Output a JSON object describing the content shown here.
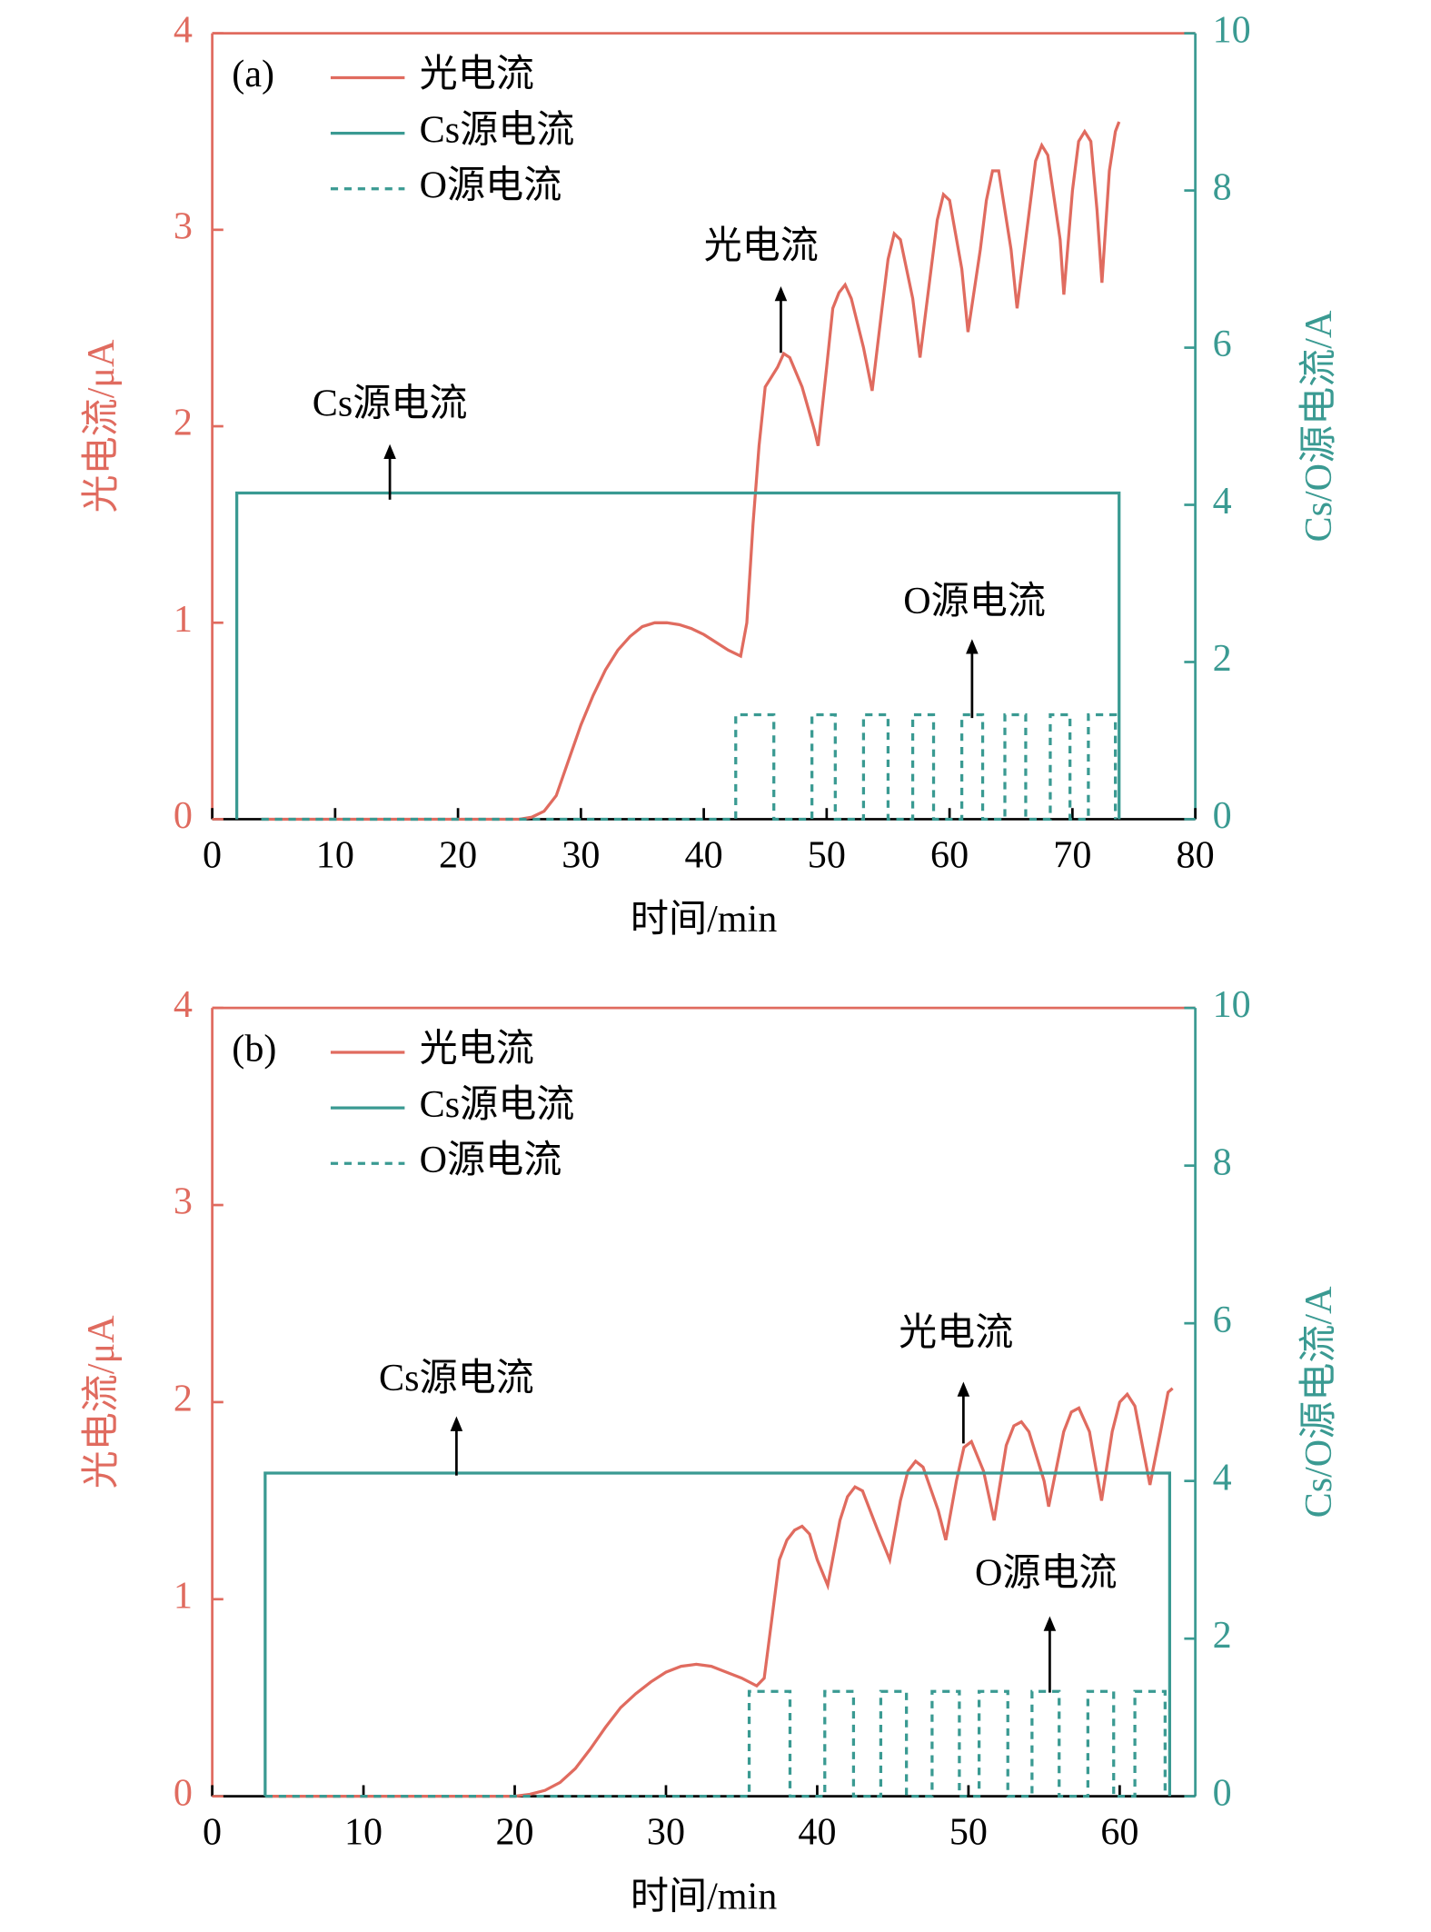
{
  "chart_data": [
    {
      "type": "line",
      "panel_label": "(a)",
      "xlabel": "时间/min",
      "ylabel": "光电流/μA",
      "y2label": "Cs/O源电流/A",
      "xlim": [
        0,
        80
      ],
      "xticks": [
        0,
        10,
        20,
        30,
        40,
        50,
        60,
        70,
        80
      ],
      "ylim": [
        0,
        4
      ],
      "yticks": [
        0,
        1,
        2,
        3,
        4
      ],
      "y2lim": [
        0,
        10
      ],
      "y2ticks": [
        0,
        2,
        4,
        6,
        8,
        10
      ],
      "annotations": [
        "光电流",
        "Cs源电流",
        "O源电流"
      ],
      "series": [
        {
          "name": "光电流",
          "color": "#e06b5f",
          "axis": "y",
          "style": "solid",
          "x": [
            4,
            25,
            26,
            27,
            28,
            29,
            30,
            31,
            32,
            33,
            34,
            35,
            36,
            37,
            38,
            39,
            40,
            41,
            42,
            43,
            43.5,
            44,
            44.5,
            45,
            45.5,
            46,
            46.5,
            47,
            48,
            49,
            49.3,
            50,
            50.5,
            51,
            51.5,
            52,
            53,
            53.7,
            54.5,
            55,
            55.5,
            56,
            57,
            57.6,
            58.5,
            59,
            59.5,
            60,
            61,
            61.5,
            62.5,
            63,
            63.5,
            64,
            65,
            65.5,
            66.5,
            67,
            67.5,
            68,
            69,
            69.3,
            70,
            70.5,
            71,
            71.5,
            72,
            72.4,
            73,
            73.5,
            73.8
          ],
          "values": [
            0,
            0,
            0.01,
            0.04,
            0.12,
            0.3,
            0.48,
            0.63,
            0.76,
            0.86,
            0.93,
            0.98,
            1.0,
            1.0,
            0.99,
            0.97,
            0.94,
            0.9,
            0.86,
            0.83,
            1.0,
            1.5,
            1.9,
            2.2,
            2.25,
            2.3,
            2.37,
            2.35,
            2.2,
            1.98,
            1.9,
            2.3,
            2.6,
            2.68,
            2.72,
            2.65,
            2.4,
            2.18,
            2.6,
            2.85,
            2.98,
            2.95,
            2.65,
            2.35,
            2.8,
            3.05,
            3.18,
            3.15,
            2.8,
            2.48,
            2.9,
            3.15,
            3.3,
            3.3,
            2.9,
            2.6,
            3.1,
            3.35,
            3.43,
            3.38,
            2.95,
            2.67,
            3.2,
            3.45,
            3.5,
            3.45,
            3.1,
            2.73,
            3.3,
            3.5,
            3.55
          ]
        },
        {
          "name": "Cs源电流",
          "color": "#3a9a92",
          "axis": "y2",
          "style": "solid",
          "x": [
            2,
            2,
            73.8,
            73.8
          ],
          "values": [
            0,
            4.15,
            4.15,
            0
          ]
        },
        {
          "name": "O源电流",
          "color": "#3a9a92",
          "axis": "y2",
          "style": "dashed",
          "x": [
            4,
            42.6,
            42.6,
            45.7,
            45.7,
            48.8,
            48.8,
            50.7,
            50.7,
            53,
            53,
            55,
            55,
            57,
            57,
            58.7,
            58.7,
            61,
            61,
            62.7,
            62.7,
            64.5,
            64.5,
            66.2,
            66.2,
            68.2,
            68.2,
            69.8,
            69.8,
            71.3,
            71.3,
            73.5,
            73.5
          ],
          "values": [
            0,
            0,
            1.33,
            1.33,
            0,
            0,
            1.33,
            1.33,
            0,
            0,
            1.33,
            1.33,
            0,
            0,
            1.33,
            1.33,
            0,
            0,
            1.33,
            1.33,
            0,
            0,
            1.33,
            1.33,
            0,
            0,
            1.33,
            1.33,
            0,
            0,
            1.33,
            1.33,
            0
          ]
        }
      ]
    },
    {
      "type": "line",
      "panel_label": "(b)",
      "xlabel": "时间/min",
      "ylabel": "光电流/μA",
      "y2label": "Cs/O源电流/A",
      "xlim": [
        0,
        65
      ],
      "xticks": [
        0,
        10,
        20,
        30,
        40,
        50,
        60
      ],
      "ylim": [
        0,
        4
      ],
      "yticks": [
        0,
        1,
        2,
        3,
        4
      ],
      "y2lim": [
        0,
        10
      ],
      "y2ticks": [
        0,
        2,
        4,
        6,
        8,
        10
      ],
      "annotations": [
        "光电流",
        "Cs源电流",
        "O源电流"
      ],
      "series": [
        {
          "name": "光电流",
          "color": "#e06b5f",
          "axis": "y",
          "style": "solid",
          "x": [
            3.5,
            20,
            21,
            22,
            23,
            24,
            25,
            26,
            27,
            28,
            29,
            30,
            31,
            32,
            33,
            34,
            35,
            36,
            36.5,
            37,
            37.5,
            38,
            38.5,
            39,
            39.5,
            40,
            40.7,
            41.5,
            42,
            42.5,
            43,
            44,
            44.8,
            45.5,
            46,
            46.5,
            47,
            48,
            48.5,
            49.2,
            49.7,
            50.2,
            51,
            51.7,
            52.5,
            53,
            53.5,
            54,
            55,
            55.3,
            56.3,
            56.8,
            57.3,
            58,
            58.8,
            59.5,
            60,
            60.5,
            61,
            62,
            62.7,
            63.2,
            63.5
          ],
          "values": [
            0,
            0,
            0.01,
            0.03,
            0.07,
            0.14,
            0.24,
            0.35,
            0.45,
            0.52,
            0.58,
            0.63,
            0.66,
            0.67,
            0.66,
            0.63,
            0.6,
            0.56,
            0.6,
            0.9,
            1.2,
            1.3,
            1.35,
            1.37,
            1.33,
            1.2,
            1.07,
            1.4,
            1.52,
            1.57,
            1.55,
            1.35,
            1.2,
            1.5,
            1.65,
            1.7,
            1.67,
            1.45,
            1.3,
            1.6,
            1.77,
            1.8,
            1.65,
            1.4,
            1.78,
            1.88,
            1.9,
            1.85,
            1.6,
            1.47,
            1.85,
            1.95,
            1.97,
            1.85,
            1.5,
            1.85,
            2.0,
            2.04,
            1.98,
            1.58,
            1.85,
            2.05,
            2.07
          ]
        },
        {
          "name": "Cs源电流",
          "color": "#3a9a92",
          "axis": "y2",
          "style": "solid",
          "x": [
            3.5,
            3.5,
            63.3,
            63.3
          ],
          "values": [
            0,
            4.1,
            4.1,
            0
          ]
        },
        {
          "name": "O源电流",
          "color": "#3a9a92",
          "axis": "y2",
          "style": "dashed",
          "x": [
            3.5,
            35.5,
            35.5,
            38.2,
            38.2,
            40.5,
            40.5,
            42.4,
            42.4,
            44.2,
            44.2,
            45.9,
            45.9,
            47.6,
            47.6,
            49.4,
            49.4,
            50.7,
            50.7,
            52.6,
            52.6,
            54.2,
            54.2,
            56,
            56,
            57.9,
            57.9,
            59.6,
            59.6,
            61,
            61,
            63,
            63
          ],
          "values": [
            0,
            0,
            1.33,
            1.33,
            0,
            0,
            1.33,
            1.33,
            0,
            0,
            1.33,
            1.33,
            0,
            0,
            1.33,
            1.33,
            0,
            0,
            1.33,
            1.33,
            0,
            0,
            1.33,
            1.33,
            0,
            0,
            1.33,
            1.33,
            0,
            0,
            1.33,
            1.33,
            0
          ]
        }
      ]
    }
  ]
}
